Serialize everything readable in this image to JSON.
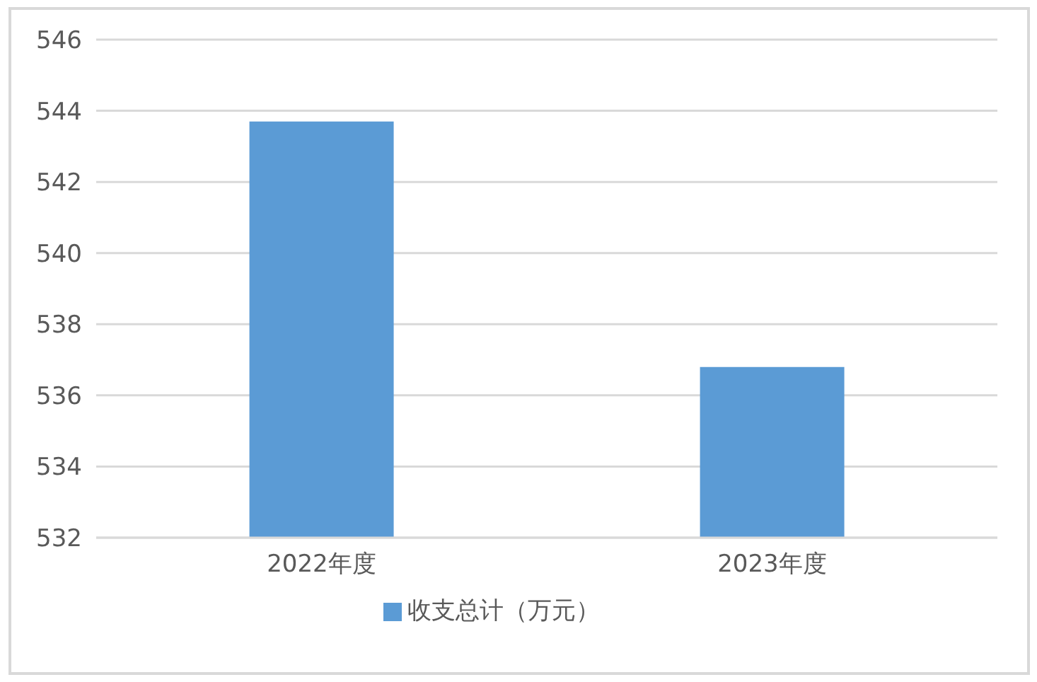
{
  "chart_data": {
    "type": "bar",
    "categories": [
      "2022年度",
      "2023年度"
    ],
    "series": [
      {
        "name": "收支总计（万元）",
        "color": "#5b9bd5",
        "values": [
          543.7,
          536.8
        ]
      }
    ],
    "ylim": [
      532,
      546
    ],
    "yticks": [
      532,
      534,
      536,
      538,
      540,
      542,
      544,
      546
    ],
    "grid": "y",
    "legend": "bottom"
  }
}
